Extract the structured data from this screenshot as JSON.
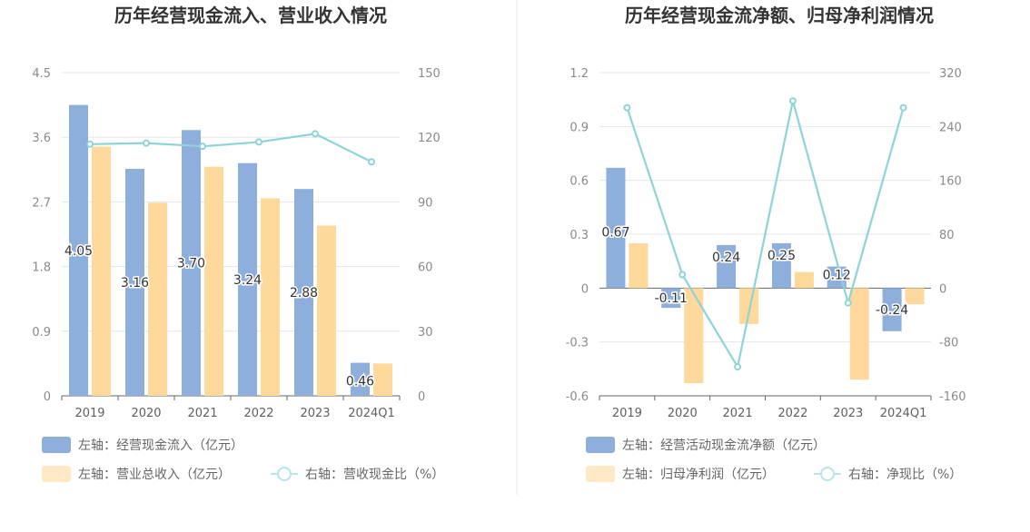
{
  "chart_data": [
    {
      "type": "bar",
      "title": "历年经营现金流入、营业收入情况",
      "categories": [
        "2019",
        "2020",
        "2021",
        "2022",
        "2023",
        "2024Q1"
      ],
      "y_left": {
        "ticks": [
          "0",
          "0.9",
          "1.8",
          "2.7",
          "3.6",
          "4.5"
        ],
        "range": [
          0,
          4.5
        ]
      },
      "y_right": {
        "ticks": [
          "0",
          "30",
          "60",
          "90",
          "120",
          "150"
        ],
        "range": [
          0,
          150
        ]
      },
      "series": [
        {
          "name": "左轴：经营现金流入（亿元）",
          "axis": "left",
          "type": "bar",
          "color": "#8eaedc",
          "values": [
            4.05,
            3.16,
            3.7,
            3.24,
            2.88,
            0.46
          ],
          "labels": [
            "4.05",
            "3.16",
            "3.70",
            "3.24",
            "2.88",
            "0.46"
          ]
        },
        {
          "name": "左轴：营业总收入（亿元）",
          "axis": "left",
          "type": "bar",
          "color": "#ffd99c",
          "values": [
            3.47,
            2.69,
            3.19,
            2.75,
            2.37,
            0.45
          ]
        },
        {
          "name": "右轴：营收现金比（%）",
          "axis": "right",
          "type": "line",
          "color": "#8dd3d8",
          "values": [
            116.8,
            117.3,
            115.8,
            117.8,
            121.6,
            108.6
          ]
        }
      ],
      "grid": true,
      "legend_position": "bottom-left"
    },
    {
      "type": "bar",
      "title": "历年经营现金流净额、归母净利润情况",
      "categories": [
        "2019",
        "2020",
        "2021",
        "2022",
        "2023",
        "2024Q1"
      ],
      "y_left": {
        "ticks": [
          "-0.6",
          "-0.3",
          "0",
          "0.3",
          "0.6",
          "0.9",
          "1.2"
        ],
        "range": [
          -0.6,
          1.2
        ]
      },
      "y_right": {
        "ticks": [
          "-160",
          "-80",
          "0",
          "80",
          "160",
          "240",
          "320"
        ],
        "range": [
          -160,
          320
        ]
      },
      "series": [
        {
          "name": "左轴：经营活动现金流净额（亿元）",
          "axis": "left",
          "type": "bar",
          "color": "#8eaedc",
          "values": [
            0.67,
            -0.11,
            0.24,
            0.25,
            0.12,
            -0.24
          ],
          "labels": [
            "0.67",
            "-0.11",
            "0.24",
            "0.25",
            "0.12",
            "-0.24"
          ]
        },
        {
          "name": "左轴：归母净利润（亿元）",
          "axis": "left",
          "type": "bar",
          "color": "#ffd99c",
          "values": [
            0.25,
            -0.53,
            -0.2,
            0.09,
            -0.51,
            -0.09
          ]
        },
        {
          "name": "右轴：净现比（%）",
          "axis": "right",
          "type": "line",
          "color": "#8dd3d8",
          "values": [
            268,
            20,
            -117,
            278,
            -22,
            268
          ]
        }
      ],
      "grid": true,
      "legend_position": "bottom-left"
    }
  ]
}
